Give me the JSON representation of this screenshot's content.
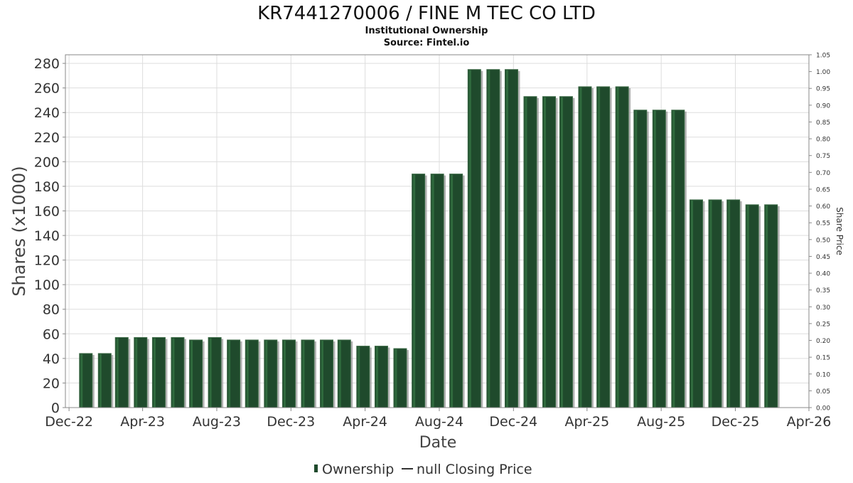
{
  "header": {
    "title": "KR7441270006 / FINE M TEC CO LTD",
    "subtitle": "Institutional Ownership",
    "source": "Source: Fintel.io"
  },
  "colors": {
    "bar": "#1f4a2c",
    "bar_edge": "#3d6b47",
    "bar_shadow": "#9a9a9a",
    "grid": "#dddddd",
    "axis": "#888888",
    "text": "#333333"
  },
  "chart_data": {
    "type": "bar",
    "title": "KR7441270006 / FINE M TEC CO LTD",
    "subtitle": "Institutional Ownership",
    "xlabel": "Date",
    "ylabel": "Shares (x1000)",
    "y2label": "Share Price",
    "xlim": [
      "2022-11-25",
      "2026-04-01"
    ],
    "ylim": [
      0,
      287
    ],
    "y2lim": [
      0,
      1.05
    ],
    "x_ticks": [
      "Dec-22",
      "Apr-23",
      "Aug-23",
      "Dec-23",
      "Apr-24",
      "Aug-24",
      "Dec-24",
      "Apr-25",
      "Aug-25",
      "Dec-25",
      "Apr-26"
    ],
    "x_tick_dates": [
      "2022-12-01",
      "2023-04-01",
      "2023-08-01",
      "2023-12-01",
      "2024-04-01",
      "2024-08-01",
      "2024-12-01",
      "2025-04-01",
      "2025-08-01",
      "2025-12-01",
      "2026-04-01"
    ],
    "y_ticks": [
      0,
      20,
      40,
      60,
      80,
      100,
      120,
      140,
      160,
      180,
      200,
      220,
      240,
      260,
      280
    ],
    "y2_ticks": [
      "0.00",
      "0.05",
      "0.10",
      "0.15",
      "0.20",
      "0.25",
      "0.30",
      "0.35",
      "0.40",
      "0.45",
      "0.50",
      "0.55",
      "0.60",
      "0.65",
      "0.70",
      "0.75",
      "0.80",
      "0.85",
      "0.90",
      "0.95",
      "1.00",
      "1.05"
    ],
    "grid": true,
    "legend_position": "bottom-center",
    "series": [
      {
        "name": "Ownership",
        "x": [
          "2022-12-31",
          "2023-01-31",
          "2023-02-28",
          "2023-03-31",
          "2023-04-30",
          "2023-05-31",
          "2023-06-30",
          "2023-07-31",
          "2023-08-31",
          "2023-09-30",
          "2023-10-31",
          "2023-11-30",
          "2023-12-31",
          "2024-01-31",
          "2024-02-29",
          "2024-03-31",
          "2024-04-30",
          "2024-05-31",
          "2024-06-30",
          "2024-07-31",
          "2024-08-31",
          "2024-09-30",
          "2024-10-31",
          "2024-11-30",
          "2024-12-31",
          "2025-01-31",
          "2025-02-28",
          "2025-03-31",
          "2025-04-30",
          "2025-05-31",
          "2025-06-30",
          "2025-07-31",
          "2025-08-31",
          "2025-09-30",
          "2025-10-31",
          "2025-11-30",
          "2025-12-31",
          "2026-01-31"
        ],
        "values": [
          44,
          44,
          57,
          57,
          57,
          57,
          55,
          57,
          55,
          55,
          55,
          55,
          55,
          55,
          55,
          50,
          50,
          48,
          190,
          190,
          190,
          275,
          275,
          275,
          253,
          253,
          253,
          261,
          261,
          261,
          242,
          242,
          242,
          169,
          169,
          169,
          165,
          165
        ]
      },
      {
        "name": "null Closing Price",
        "values": []
      }
    ]
  },
  "legend": {
    "items": [
      {
        "label": "Ownership"
      },
      {
        "label": "null Closing Price"
      }
    ]
  }
}
